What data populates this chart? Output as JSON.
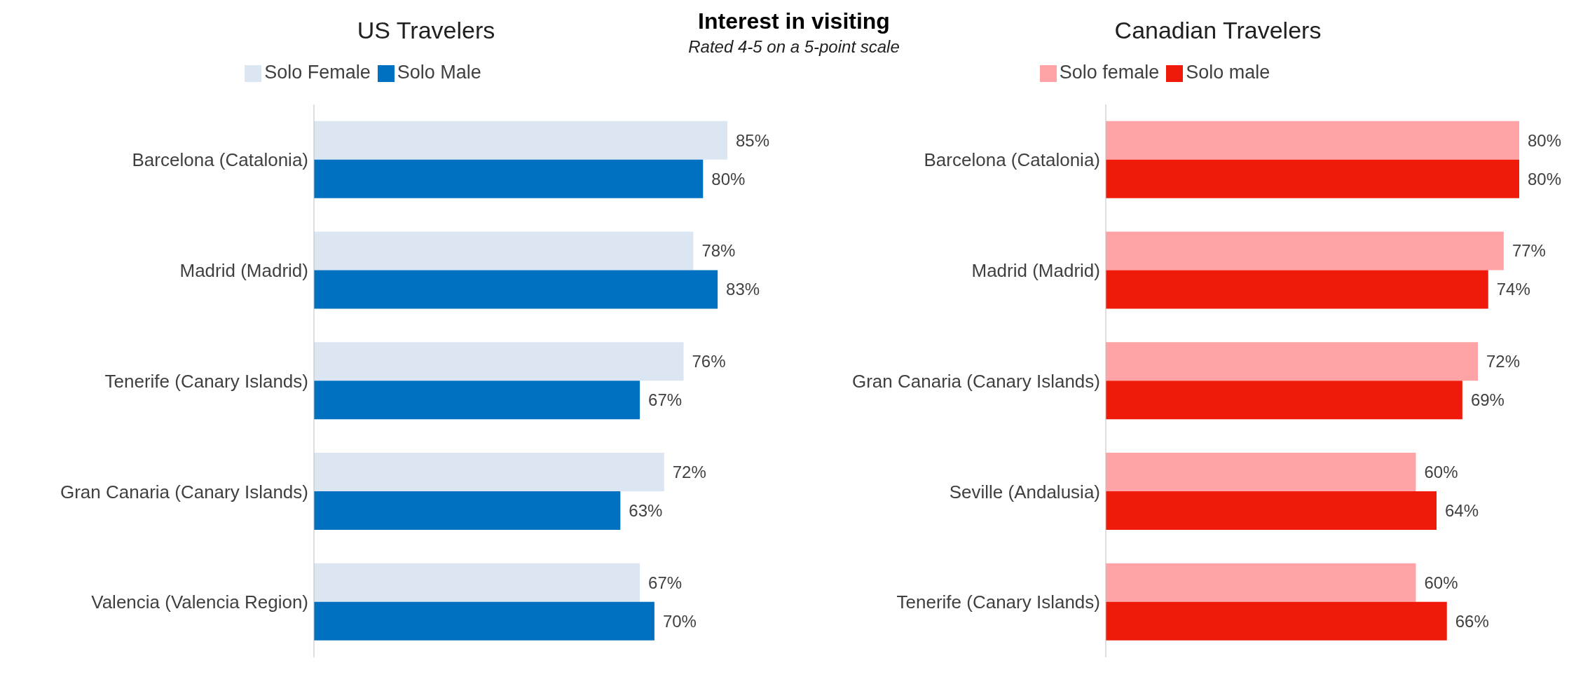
{
  "chart_data": [
    {
      "type": "bar",
      "orientation": "horizontal",
      "title": "US Travelers",
      "annotations": [
        "Interest in visiting",
        "Rated 4-5 on a 5-point scale"
      ],
      "legend": "top",
      "categories": [
        "Barcelona (Catalonia)",
        "Madrid (Madrid)",
        "Tenerife (Canary Islands)",
        "Gran Canaria (Canary Islands)",
        "Valencia (Valencia Region)"
      ],
      "series": [
        {
          "name": "Solo Female",
          "color": "#dce6f2",
          "values": [
            85,
            78,
            76,
            72,
            67
          ],
          "value_labels": [
            "85%",
            "78%",
            "76%",
            "72%",
            "67%"
          ]
        },
        {
          "name": "Solo Male",
          "color": "#0070c0",
          "values": [
            80,
            83,
            67,
            63,
            70
          ],
          "value_labels": [
            "80%",
            "83%",
            "67%",
            "63%",
            "70%"
          ]
        }
      ]
    },
    {
      "type": "bar",
      "orientation": "horizontal",
      "title": "Canadian Travelers",
      "legend": "top",
      "categories": [
        "Barcelona (Catalonia)",
        "Madrid (Madrid)",
        "Gran Canaria (Canary Islands)",
        "Seville (Andalusia)",
        "Tenerife (Canary Islands)"
      ],
      "series": [
        {
          "name": "Solo female",
          "color": "#ffa3a6",
          "values": [
            80,
            77,
            72,
            60,
            60
          ],
          "value_labels": [
            "80%",
            "77%",
            "72%",
            "60%",
            "60%"
          ]
        },
        {
          "name": "Solo male",
          "color": "#f01a0a",
          "values": [
            80,
            74,
            69,
            64,
            66
          ],
          "value_labels": [
            "80%",
            "74%",
            "69%",
            "64%",
            "66%"
          ]
        }
      ]
    }
  ]
}
